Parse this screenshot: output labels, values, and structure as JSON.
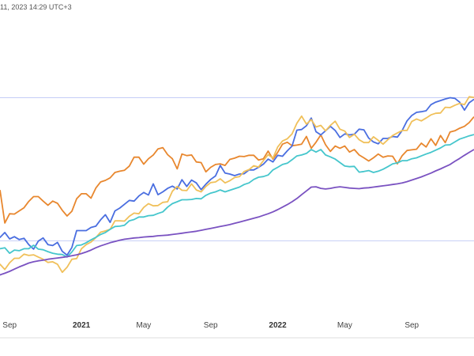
{
  "header": {
    "timestamp": "11, 2023 14:29 UTC+3"
  },
  "chart_data": {
    "type": "line",
    "title": "",
    "xlabel": "",
    "ylabel": "",
    "x_ticks": [
      {
        "label": "Sep",
        "index": 3,
        "bold": false
      },
      {
        "label": "2021",
        "index": 18,
        "bold": true
      },
      {
        "label": "May",
        "index": 31,
        "bold": false
      },
      {
        "label": "Sep",
        "index": 45,
        "bold": false
      },
      {
        "label": "2022",
        "index": 59,
        "bold": true
      },
      {
        "label": "May",
        "index": 73,
        "bold": false
      },
      {
        "label": "Sep",
        "index": 87,
        "bold": false
      }
    ],
    "y_range": [
      0,
      100
    ],
    "reference_lines": [
      75,
      30
    ],
    "colors": {
      "reference": "#c5cdf6",
      "grid_bottom": "#dddddd"
    },
    "series": [
      {
        "color": "#e8872e",
        "values": [
          43.8,
          45.8,
          35.6,
          38.5,
          38.4,
          39.4,
          40.4,
          42.4,
          43.9,
          43.9,
          42.5,
          41.2,
          42.5,
          41.8,
          39.6,
          37.8,
          39.3,
          43.2,
          44.8,
          44.8,
          43.4,
          46.6,
          48.5,
          49.0,
          49.8,
          51.5,
          51.9,
          52.2,
          53.5,
          56.3,
          56.3,
          54.1,
          55.8,
          57.0,
          58.9,
          59.3,
          57.1,
          55.8,
          52.6,
          57.3,
          56.8,
          57.0,
          54.8,
          54.6,
          51.7,
          53.1,
          54.0,
          54.2,
          53.7,
          55.6,
          56.0,
          56.6,
          56.5,
          56.9,
          56.9,
          55.4,
          55.8,
          58.2,
          55.7,
          57.8,
          60.4,
          61.0,
          59.9,
          60.1,
          60.4,
          62.8,
          59.1,
          61.0,
          63.3,
          60.2,
          58.1,
          59.8,
          59.1,
          59.8,
          57.9,
          58.7,
          57.0,
          56.1,
          55.1,
          56.1,
          57.3,
          56.3,
          56.7,
          56.6,
          54.2,
          56.8,
          58.4,
          58.6,
          58.8,
          60.7,
          59.5,
          62.1,
          60.0,
          63.1,
          60.9,
          64.2,
          64.6,
          65.4,
          66.0,
          67.2,
          69.0
        ]
      },
      {
        "color": "#4a6ee0",
        "values": [
          30.7,
          31.1,
          32.6,
          30.6,
          31.3,
          30.4,
          30.8,
          28.8,
          27.4,
          29.9,
          30.9,
          28.8,
          28.5,
          29.5,
          26.7,
          25.5,
          27.9,
          33.2,
          33.2,
          33.2,
          34.2,
          34.6,
          36.6,
          38.2,
          35.8,
          39.4,
          40.3,
          41.5,
          42.7,
          42.5,
          44.1,
          45.2,
          44.4,
          47.9,
          44.5,
          45.4,
          46.5,
          47.2,
          46.3,
          49.2,
          47.1,
          49.1,
          48.2,
          46.1,
          47.8,
          49.3,
          50.4,
          53.7,
          51.3,
          51.0,
          50.5,
          51.0,
          51.1,
          52.3,
          52.3,
          53.1,
          54.1,
          55.7,
          54.8,
          56.9,
          56.6,
          58.3,
          59.8,
          64.8,
          65.0,
          66.2,
          68.6,
          64.3,
          63.3,
          64.6,
          66.0,
          64.7,
          62.5,
          63.6,
          63.3,
          63.5,
          65.1,
          64.9,
          62.3,
          61.1,
          60.5,
          62.2,
          62.2,
          62.8,
          62.6,
          64.7,
          67.7,
          69.4,
          70.4,
          70.6,
          70.9,
          72.8,
          73.6,
          74.1,
          74.6,
          75.0,
          74.8,
          73.6,
          71.1,
          73.4,
          74.5
        ]
      },
      {
        "color": "#f0c05a",
        "values": [
          20.5,
          22.6,
          21.0,
          23.1,
          24.5,
          24.5,
          25.8,
          25.4,
          25.6,
          24.9,
          24.2,
          23.2,
          23.4,
          22.6,
          20.1,
          21.7,
          24.2,
          24.4,
          27.5,
          28.8,
          29.6,
          31.0,
          32.7,
          33.1,
          33.6,
          36.3,
          36.3,
          36.2,
          37.7,
          38.7,
          38.5,
          40.5,
          41.7,
          41.0,
          41.1,
          42.1,
          42.3,
          45.6,
          47.1,
          45.9,
          45.8,
          47.9,
          46.0,
          45.4,
          47.1,
          48.3,
          48.5,
          49.5,
          48.2,
          48.9,
          49.9,
          50.2,
          51.8,
          52.4,
          53.6,
          53.2,
          55.2,
          57.1,
          56.0,
          59.5,
          61.4,
          62.1,
          63.6,
          67.0,
          69.2,
          66.7,
          68.1,
          65.8,
          66.3,
          64.6,
          66.3,
          67.6,
          65.1,
          64.5,
          62.5,
          63.5,
          61.8,
          60.9,
          60.9,
          62.7,
          61.6,
          60.4,
          61.8,
          63.1,
          63.9,
          64.7,
          64.7,
          67.5,
          68.3,
          67.7,
          68.6,
          69.6,
          70.1,
          70.2,
          72.0,
          71.9,
          72.6,
          73.2,
          72.8,
          75.3,
          75.1
        ]
      },
      {
        "color": "#45c6cc",
        "values": [
          28.1,
          27.5,
          27.8,
          26.1,
          27.1,
          26.9,
          27.5,
          27.5,
          28.6,
          27.4,
          27.2,
          26.6,
          26.1,
          25.8,
          25.7,
          24.9,
          26.5,
          28.5,
          28.7,
          29.4,
          30.3,
          31.1,
          32.0,
          32.6,
          33.6,
          34.5,
          34.6,
          34.9,
          36.3,
          36.7,
          37.5,
          37.5,
          37.9,
          38.0,
          38.6,
          39.1,
          40.6,
          41.7,
          42.3,
          42.9,
          42.9,
          43.0,
          43.3,
          43.2,
          44.3,
          45.0,
          45.4,
          46.0,
          45.4,
          45.9,
          46.4,
          46.9,
          47.7,
          48.2,
          49.3,
          50.0,
          50.2,
          50.7,
          52.3,
          53.1,
          54.0,
          54.4,
          55.5,
          56.7,
          57.0,
          57.5,
          58.7,
          57.9,
          58.7,
          57.0,
          56.4,
          55.7,
          54.6,
          53.5,
          53.3,
          53.4,
          51.6,
          51.8,
          52.1,
          51.5,
          51.9,
          52.5,
          53.3,
          54.2,
          54.5,
          55.2,
          55.2,
          55.8,
          56.1,
          56.7,
          57.3,
          57.8,
          58.5,
          59.2,
          60.1,
          60.2,
          61.1,
          62.0,
          62.5,
          63.0,
          63.4
        ]
      },
      {
        "color": "#7a52c1",
        "values": [
          18.2,
          19.3,
          19.8,
          20.4,
          21.1,
          21.8,
          22.4,
          23.0,
          23.4,
          23.7,
          23.9,
          24.2,
          24.4,
          24.6,
          24.8,
          25.0,
          25.3,
          25.6,
          26.0,
          26.5,
          27.1,
          27.8,
          28.4,
          28.9,
          29.4,
          29.8,
          30.2,
          30.5,
          30.7,
          30.9,
          31.0,
          31.2,
          31.3,
          31.4,
          31.6,
          31.7,
          31.8,
          32.0,
          32.2,
          32.4,
          32.6,
          32.8,
          33.0,
          33.3,
          33.6,
          33.9,
          34.2,
          34.5,
          34.8,
          35.1,
          35.5,
          35.9,
          36.3,
          36.7,
          37.1,
          37.5,
          38.0,
          38.5,
          39.1,
          39.8,
          40.6,
          41.4,
          42.3,
          43.3,
          44.5,
          45.7,
          46.9,
          47.0,
          46.5,
          46.3,
          46.5,
          46.8,
          47.0,
          46.8,
          46.6,
          46.5,
          46.4,
          46.6,
          46.7,
          46.9,
          47.1,
          47.3,
          47.5,
          47.7,
          47.9,
          48.2,
          48.6,
          49.1,
          49.6,
          50.1,
          50.7,
          51.3,
          52.0,
          52.6,
          53.3,
          54.0,
          55.0,
          55.9,
          56.9,
          57.8,
          58.7
        ]
      }
    ]
  }
}
